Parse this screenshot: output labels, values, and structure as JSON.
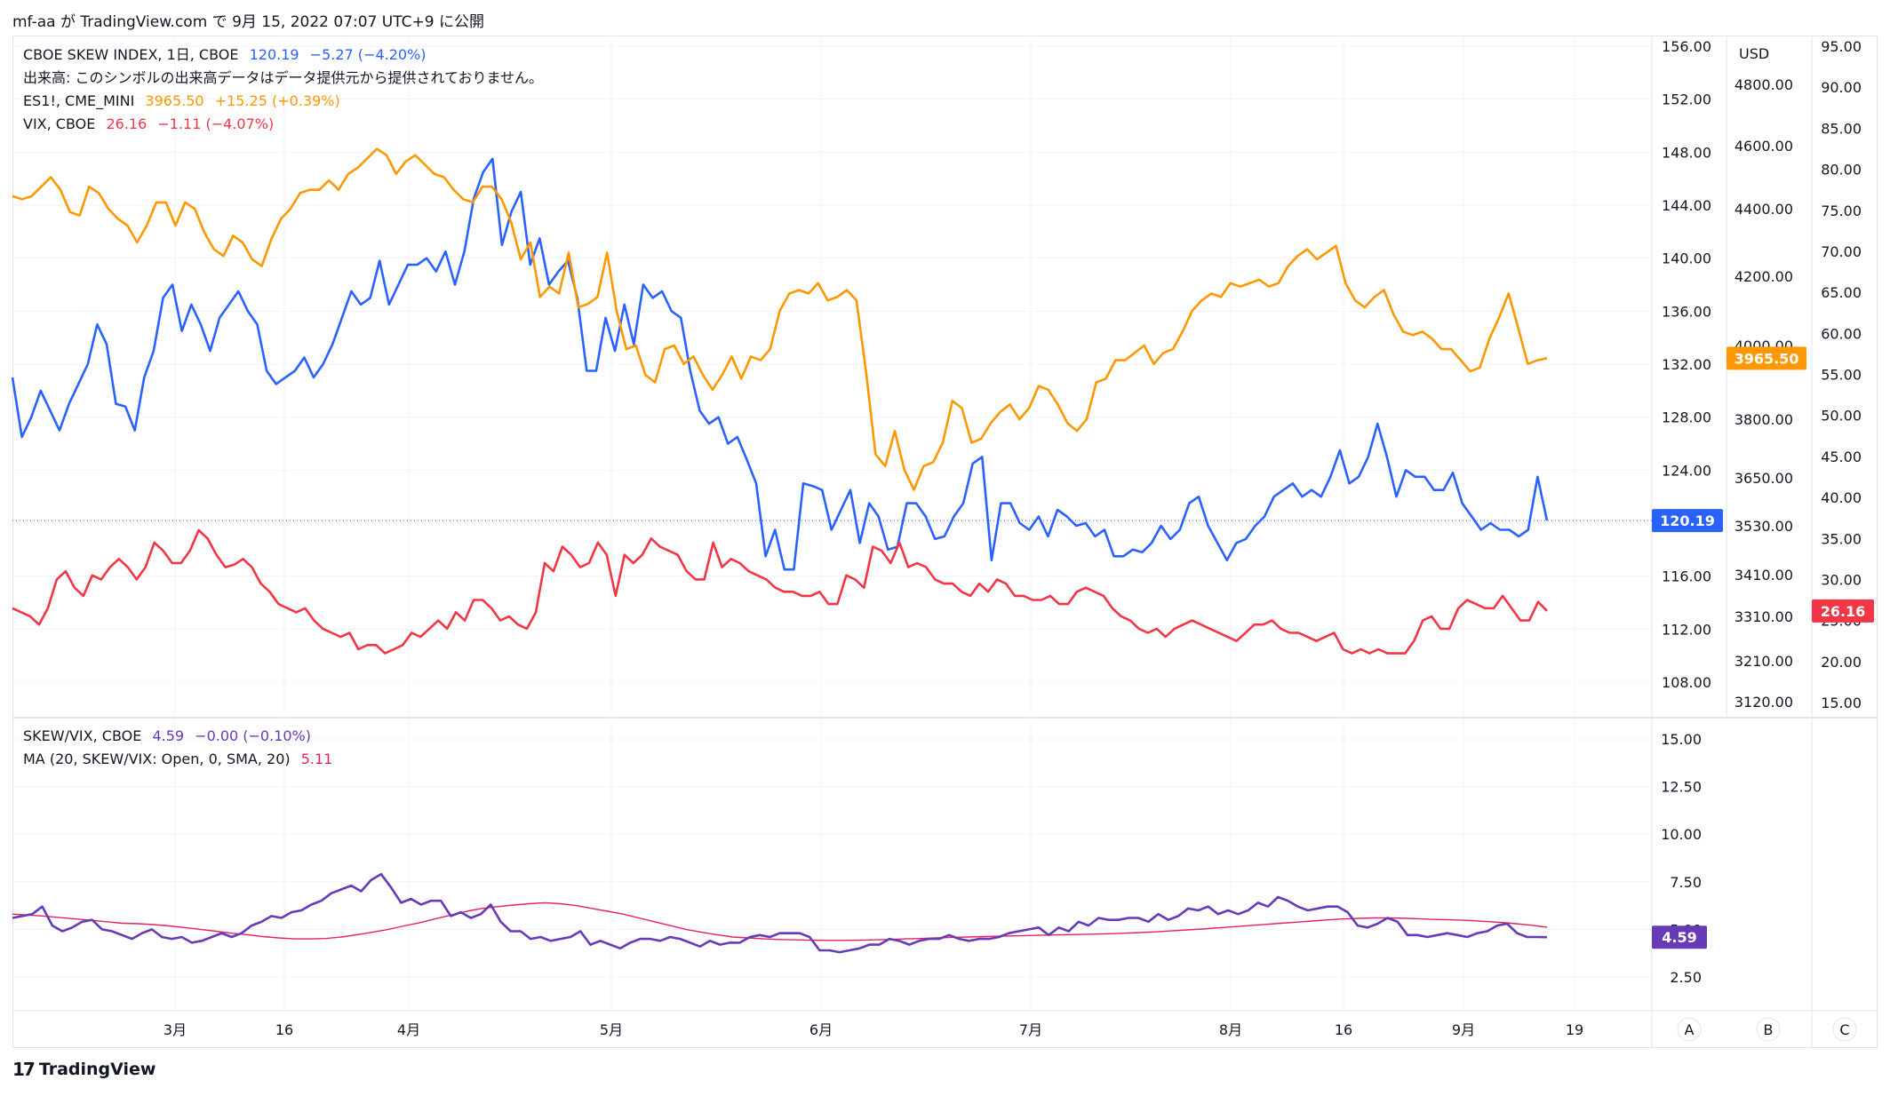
{
  "header": {
    "text": "mf-aa が TradingView.com で 9月 15, 2022 07:07 UTC+9 に公開"
  },
  "footer": {
    "logo": "TradingView"
  },
  "legend_top": [
    {
      "name": "CBOE SKEW INDEX, 1日, CBOE",
      "value": "120.19",
      "change": "−5.27 (−4.20%)",
      "color": "#2962ff"
    },
    {
      "name": "出来高: このシンボルの出来高データはデータ提供元から提供されておりません。",
      "value": "",
      "change": "",
      "color": "#131722"
    },
    {
      "name": "ES1!, CME_MINI",
      "value": "3965.50",
      "change": "+15.25 (+0.39%)",
      "color": "#ff9800"
    },
    {
      "name": "VIX, CBOE",
      "value": "26.16",
      "change": "−1.11 (−4.07%)",
      "color": "#f23645"
    }
  ],
  "legend_bottom": [
    {
      "name": "SKEW/VIX, CBOE",
      "value": "4.59",
      "change": "−0.00 (−0.10%)",
      "color": "#673ab7"
    },
    {
      "name": "MA (20, SKEW/VIX: Open, 0, SMA, 20)",
      "value": "5.11",
      "change": "",
      "color": "#e91e63"
    }
  ],
  "axes": {
    "skew_ticks": [
      "156.00",
      "152.00",
      "148.00",
      "144.00",
      "140.00",
      "136.00",
      "132.00",
      "128.00",
      "124.00",
      "120.00",
      "116.00",
      "112.00",
      "108.00"
    ],
    "es_unit": "USD",
    "es_ticks": [
      "4800.00",
      "4600.00",
      "4400.00",
      "4200.00",
      "4000.00",
      "3800.00",
      "3650.00",
      "3530.00",
      "3410.00",
      "3310.00",
      "3210.00",
      "3120.00"
    ],
    "vix_ticks": [
      "95.00",
      "90.00",
      "85.00",
      "80.00",
      "75.00",
      "70.00",
      "65.00",
      "60.00",
      "55.00",
      "50.00",
      "45.00",
      "40.00",
      "35.00",
      "30.00",
      "25.00",
      "20.00",
      "15.00"
    ],
    "ratio_ticks": [
      "15.00",
      "12.50",
      "10.00",
      "7.50",
      "5.00",
      "2.50"
    ],
    "x_ticks": [
      "3月",
      "16",
      "4月",
      "5月",
      "6月",
      "7月",
      "8月",
      "16",
      "9月",
      "19"
    ],
    "scale_buttons": [
      "A",
      "B",
      "C"
    ]
  },
  "badges": {
    "skew": {
      "text": "120.19",
      "color": "#2962ff"
    },
    "es": {
      "text": "3965.50",
      "color": "#ff9800"
    },
    "vix": {
      "text": "26.16",
      "color": "#f23645"
    },
    "ratio": {
      "text": "4.59",
      "color": "#673ab7"
    }
  },
  "chart_data": [
    {
      "type": "line",
      "title": "CBOE SKEW INDEX / ES1! / VIX",
      "x_range": [
        "2022-02-14",
        "2022-09-14"
      ],
      "series": [
        {
          "name": "CBOE SKEW INDEX, 1日, CBOE",
          "axis": "skew",
          "color": "#2962ff",
          "values": [
            131.0,
            126.5,
            128.0,
            130.0,
            128.5,
            127.0,
            129.0,
            130.5,
            132.0,
            135.0,
            133.5,
            129.0,
            128.8,
            127.0,
            131.0,
            133.0,
            137.0,
            138.0,
            134.5,
            136.5,
            135.0,
            133.0,
            135.5,
            136.5,
            137.5,
            136.0,
            135.0,
            131.5,
            130.5,
            131.0,
            131.5,
            132.5,
            131.0,
            132.0,
            133.5,
            135.5,
            137.5,
            136.5,
            137.0,
            139.8,
            136.5,
            138.0,
            139.5,
            139.5,
            140.0,
            139.0,
            140.5,
            138.0,
            140.5,
            144.5,
            146.5,
            147.5,
            141.0,
            143.5,
            145.0,
            139.5,
            141.5,
            138.0,
            139.0,
            139.8,
            137.0,
            131.5,
            131.5,
            135.5,
            133.0,
            136.5,
            133.5,
            138.0,
            137.0,
            137.5,
            136.0,
            135.5,
            131.5,
            128.5,
            127.5,
            128.0,
            126.0,
            126.5,
            124.8,
            123.0,
            117.5,
            119.5,
            116.5,
            116.5,
            123.0,
            122.8,
            122.5,
            119.5,
            121.0,
            122.5,
            118.5,
            121.5,
            120.5,
            118.0,
            118.2,
            121.5,
            121.5,
            120.5,
            118.8,
            119.0,
            120.5,
            121.5,
            124.5,
            125.0,
            117.2,
            121.5,
            121.5,
            120.0,
            119.5,
            120.5,
            119.0,
            121.0,
            120.5,
            119.8,
            120.0,
            119.0,
            119.5,
            117.5,
            117.5,
            118.0,
            117.8,
            118.5,
            119.8,
            118.8,
            119.5,
            121.5,
            122.0,
            119.8,
            118.5,
            117.2,
            118.5,
            118.8,
            119.8,
            120.5,
            122.0,
            122.5,
            123.0,
            122.0,
            122.5,
            122.0,
            123.5,
            125.5,
            123.0,
            123.5,
            125.0,
            127.5,
            125.0,
            122.0,
            124.0,
            123.5,
            123.5,
            122.5,
            122.5,
            123.8,
            121.5,
            120.5,
            119.5,
            120.0,
            119.5,
            119.5,
            119.0,
            119.5,
            123.5,
            120.19
          ]
        },
        {
          "name": "ES1!, CME_MINI",
          "axis": "es",
          "color": "#ff9800",
          "values": [
            4440,
            4430,
            4440,
            4470,
            4500,
            4460,
            4390,
            4380,
            4470,
            4450,
            4400,
            4370,
            4350,
            4300,
            4350,
            4420,
            4420,
            4350,
            4420,
            4400,
            4330,
            4280,
            4260,
            4320,
            4300,
            4250,
            4230,
            4310,
            4370,
            4400,
            4450,
            4460,
            4460,
            4490,
            4460,
            4510,
            4530,
            4560,
            4590,
            4570,
            4510,
            4550,
            4570,
            4540,
            4510,
            4500,
            4460,
            4430,
            4420,
            4470,
            4470,
            4430,
            4360,
            4250,
            4300,
            4140,
            4170,
            4150,
            4270,
            4110,
            4120,
            4140,
            4270,
            4100,
            3990,
            4000,
            3920,
            3900,
            3990,
            4000,
            3950,
            3970,
            3920,
            3880,
            3920,
            3970,
            3910,
            3970,
            3960,
            3990,
            4100,
            4150,
            4160,
            4150,
            4180,
            4130,
            4140,
            4160,
            4130,
            3930,
            3710,
            3680,
            3770,
            3670,
            3620,
            3680,
            3690,
            3740,
            3850,
            3830,
            3740,
            3750,
            3790,
            3820,
            3840,
            3800,
            3830,
            3890,
            3880,
            3840,
            3790,
            3770,
            3800,
            3900,
            3910,
            3960,
            3960,
            3980,
            4000,
            3950,
            3980,
            3990,
            4040,
            4100,
            4130,
            4150,
            4140,
            4180,
            4170,
            4180,
            4190,
            4170,
            4180,
            4230,
            4260,
            4280,
            4250,
            4270,
            4290,
            4180,
            4130,
            4110,
            4140,
            4160,
            4090,
            4040,
            4030,
            4040,
            4020,
            3990,
            3990,
            3960,
            3930,
            3940,
            4020,
            4080,
            4150,
            4050,
            3950,
            3960,
            3965.5
          ]
        },
        {
          "name": "VIX, CBOE",
          "axis": "vix",
          "color": "#f23645",
          "values": [
            26.5,
            26.0,
            25.5,
            24.5,
            26.5,
            30.0,
            31.0,
            29.0,
            28.0,
            30.5,
            30.0,
            31.5,
            32.5,
            31.5,
            30.0,
            31.5,
            34.5,
            33.5,
            32.0,
            32.0,
            33.5,
            36.0,
            35.0,
            33.0,
            31.5,
            31.8,
            32.5,
            31.5,
            29.5,
            28.5,
            27.0,
            26.5,
            26.0,
            26.5,
            25.0,
            24.0,
            23.5,
            23.0,
            23.5,
            21.5,
            22.0,
            22.0,
            21.0,
            21.5,
            22.0,
            23.5,
            23.0,
            24.0,
            25.0,
            24.0,
            26.0,
            25.0,
            27.5,
            27.5,
            26.5,
            25.0,
            25.5,
            24.5,
            24.0,
            26.0,
            32.0,
            31.0,
            34.0,
            33.0,
            31.5,
            32.0,
            34.5,
            33.0,
            28.0,
            33.0,
            32.0,
            33.0,
            35.0,
            34.0,
            33.5,
            33.0,
            31.0,
            30.0,
            30.0,
            34.5,
            31.5,
            32.5,
            32.0,
            31.0,
            30.5,
            30.0,
            29.0,
            28.5,
            28.5,
            28.0,
            28.0,
            28.5,
            27.0,
            27.0,
            30.5,
            30.0,
            29.0,
            34.0,
            33.5,
            32.0,
            34.5,
            31.5,
            32.0,
            31.5,
            30.0,
            29.5,
            29.5,
            28.5,
            28.0,
            29.5,
            28.5,
            30.0,
            29.5,
            28.0,
            28.0,
            27.5,
            27.5,
            28.0,
            27.0,
            27.0,
            28.5,
            29.0,
            28.5,
            28.0,
            26.5,
            25.5,
            25.0,
            24.0,
            23.5,
            24.0,
            23.0,
            24.0,
            24.5,
            25.0,
            24.5,
            24.0,
            23.5,
            23.0,
            22.5,
            23.5,
            24.5,
            24.5,
            25.0,
            24.0,
            23.5,
            23.5,
            23.0,
            22.5,
            23.0,
            23.5,
            21.5,
            21.0,
            21.5,
            21.0,
            21.5,
            21.0,
            21.0,
            21.0,
            22.5,
            25.0,
            25.5,
            24.0,
            24.0,
            26.5,
            27.5,
            27.0,
            26.5,
            26.5,
            28.0,
            26.5,
            25.0,
            25.0,
            27.27,
            26.16
          ]
        }
      ],
      "skew_axis": {
        "ylim": [
          106.0,
          158.0
        ]
      },
      "vix_axis": {
        "ylim": [
          11.0,
          96.0
        ]
      },
      "es_axis": {
        "scale": "log",
        "ticks": [
          4800,
          4600,
          4400,
          4200,
          4000,
          3800,
          3650,
          3530,
          3410,
          3310,
          3210,
          3120
        ]
      }
    },
    {
      "type": "line",
      "title": "SKEW/VIX",
      "ylim": [
        0.5,
        16.5
      ],
      "series": [
        {
          "name": "SKEW/VIX, CBOE",
          "color": "#673ab7",
          "values": [
            5.6,
            5.7,
            5.8,
            6.2,
            5.2,
            4.9,
            5.1,
            5.4,
            5.5,
            5.0,
            4.9,
            4.7,
            4.5,
            4.8,
            5.0,
            4.6,
            4.5,
            4.6,
            4.3,
            4.4,
            4.6,
            4.8,
            4.6,
            4.8,
            5.2,
            5.4,
            5.7,
            5.6,
            5.9,
            6.0,
            6.3,
            6.5,
            6.9,
            7.1,
            7.3,
            7.0,
            7.6,
            7.9,
            7.2,
            6.4,
            6.6,
            6.3,
            6.5,
            6.5,
            5.7,
            5.9,
            5.6,
            5.8,
            6.3,
            5.4,
            4.9,
            4.9,
            4.5,
            4.6,
            4.4,
            4.5,
            4.6,
            4.9,
            4.2,
            4.4,
            4.2,
            4.0,
            4.3,
            4.5,
            4.5,
            4.4,
            4.6,
            4.5,
            4.3,
            4.1,
            4.4,
            4.2,
            4.3,
            4.3,
            4.6,
            4.7,
            4.6,
            4.8,
            4.8,
            4.8,
            4.6,
            3.9,
            3.9,
            3.8,
            3.9,
            4.0,
            4.2,
            4.2,
            4.5,
            4.4,
            4.2,
            4.4,
            4.5,
            4.5,
            4.7,
            4.5,
            4.4,
            4.5,
            4.5,
            4.6,
            4.8,
            4.9,
            5.0,
            5.1,
            4.7,
            5.1,
            4.9,
            5.4,
            5.2,
            5.6,
            5.5,
            5.5,
            5.6,
            5.6,
            5.4,
            5.8,
            5.5,
            5.7,
            6.1,
            6.0,
            6.2,
            5.8,
            6.0,
            5.8,
            6.0,
            6.4,
            6.2,
            6.7,
            6.5,
            6.2,
            6.0,
            6.1,
            6.2,
            6.2,
            5.9,
            5.2,
            5.1,
            5.3,
            5.6,
            5.4,
            4.7,
            4.7,
            4.6,
            4.7,
            4.8,
            4.7,
            4.6,
            4.8,
            4.9,
            5.2,
            5.3,
            4.8,
            4.6,
            4.6,
            4.59
          ]
        },
        {
          "name": "MA (20, SKEW/VIX: Open, 0, SMA, 20)",
          "color": "#e91e63",
          "values": [
            5.8,
            5.75,
            5.7,
            5.62,
            5.55,
            5.48,
            5.4,
            5.32,
            5.3,
            5.25,
            5.18,
            5.1,
            5.0,
            4.9,
            4.8,
            4.72,
            4.62,
            4.55,
            4.5,
            4.5,
            4.52,
            4.6,
            4.72,
            4.85,
            5.0,
            5.18,
            5.35,
            5.55,
            5.75,
            5.95,
            6.1,
            6.2,
            6.28,
            6.35,
            6.4,
            6.35,
            6.25,
            6.1,
            5.95,
            5.8,
            5.6,
            5.4,
            5.2,
            5.0,
            4.85,
            4.72,
            4.6,
            4.55,
            4.5,
            4.47,
            4.45,
            4.43,
            4.42,
            4.42,
            4.43,
            4.45,
            4.47,
            4.5,
            4.52,
            4.55,
            4.58,
            4.6,
            4.62,
            4.64,
            4.66,
            4.68,
            4.7,
            4.72,
            4.73,
            4.75,
            4.77,
            4.8,
            4.83,
            4.87,
            4.92,
            4.97,
            5.02,
            5.08,
            5.14,
            5.2,
            5.26,
            5.32,
            5.38,
            5.44,
            5.5,
            5.55,
            5.58,
            5.6,
            5.6,
            5.58,
            5.55,
            5.52,
            5.5,
            5.47,
            5.42,
            5.37,
            5.3,
            5.22,
            5.11
          ]
        }
      ]
    }
  ]
}
